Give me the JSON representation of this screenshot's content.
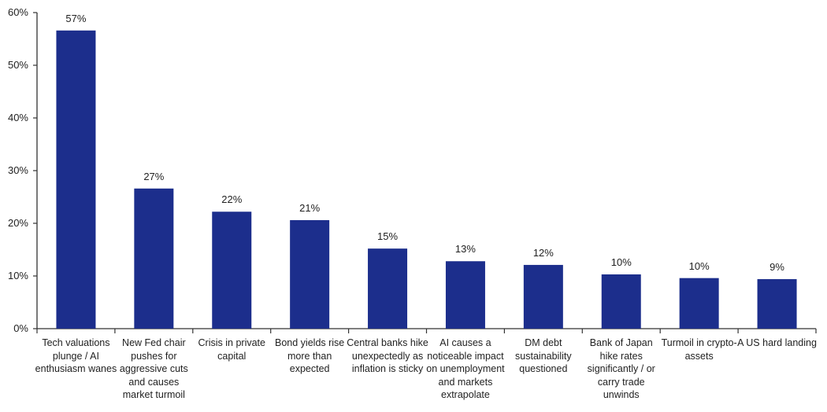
{
  "chart_data": {
    "type": "bar",
    "title": "",
    "xlabel": "",
    "ylabel": "",
    "ylim": [
      0,
      60
    ],
    "yticks": [
      "0%",
      "10%",
      "20%",
      "30%",
      "40%",
      "50%",
      "60%"
    ],
    "grid": false,
    "bar_color": "#1c2e8c",
    "categories": [
      "Tech valuations plunge / AI enthusiasm wanes",
      "New Fed chair pushes for aggressive cuts and causes market turmoil",
      "Crisis in private capital",
      "Bond yields rise more than expected",
      "Central banks hike unexpectedly as inflation is sticky",
      "AI causes a noticeable impact on unemployment and markets extrapolate",
      "DM debt sustainability questioned",
      "Bank of Japan hike rates significantly / or carry trade unwinds",
      "Turmoil in crypto-assets",
      "A US hard landing"
    ],
    "values": [
      56.6,
      26.6,
      22.2,
      20.6,
      15.2,
      12.8,
      12.1,
      10.3,
      9.6,
      9.4
    ],
    "data_labels": [
      "57%",
      "27%",
      "22%",
      "21%",
      "15%",
      "13%",
      "12%",
      "10%",
      "10%",
      "9%"
    ]
  }
}
